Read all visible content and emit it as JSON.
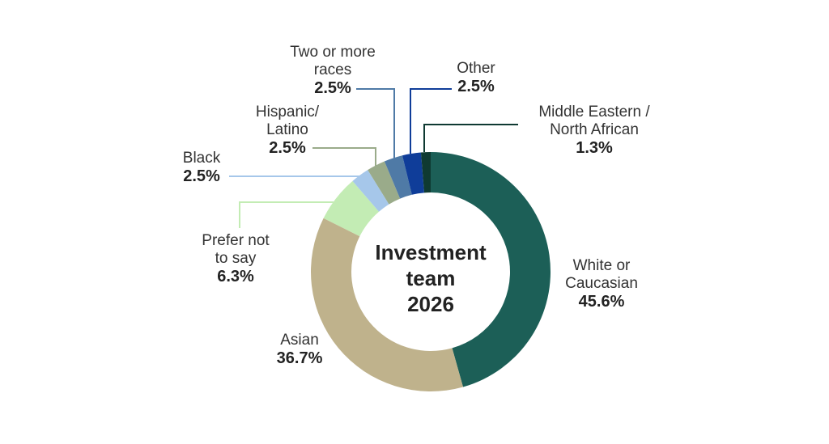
{
  "chart_data": {
    "type": "pie",
    "style": "donut",
    "center_text": [
      "Investment",
      "team",
      "2026"
    ],
    "slices": [
      {
        "label": [
          "White or",
          "Caucasian"
        ],
        "value": 45.6,
        "value_label": "45.6%",
        "color": "#1c5f57"
      },
      {
        "label": [
          "Asian"
        ],
        "value": 36.7,
        "value_label": "36.7%",
        "color": "#bfb28c"
      },
      {
        "label": [
          "Prefer not",
          "to say"
        ],
        "value": 6.3,
        "value_label": "6.3%",
        "color": "#c3ecb4"
      },
      {
        "label": [
          "Black"
        ],
        "value": 2.5,
        "value_label": "2.5%",
        "color": "#a6c7ea"
      },
      {
        "label": [
          "Hispanic/",
          "Latino"
        ],
        "value": 2.5,
        "value_label": "2.5%",
        "color": "#9aab8a"
      },
      {
        "label": [
          "Two or more",
          "races"
        ],
        "value": 2.5,
        "value_label": "2.5%",
        "color": "#4f7aa6"
      },
      {
        "label": [
          "Other"
        ],
        "value": 2.5,
        "value_label": "2.5%",
        "color": "#0f3d99"
      },
      {
        "label": [
          "Middle Eastern /",
          "North African"
        ],
        "value": 1.3,
        "value_label": "1.3%",
        "color": "#0f3a32"
      }
    ]
  }
}
